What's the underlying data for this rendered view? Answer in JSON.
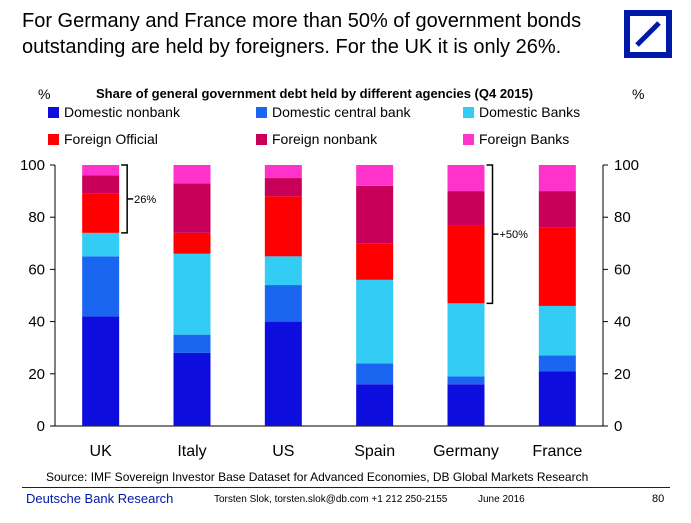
{
  "headline": "For Germany and France more than 50% of government bonds outstanding are held by foreigners. For the UK it is only 26%.",
  "logo": {
    "name": "deutsche-bank-logo",
    "color": "#0018a8"
  },
  "chart_data": {
    "type": "bar",
    "stacked": true,
    "title": "Share of general government debt held by different agencies (Q4 2015)",
    "ylabel_left": "%",
    "ylabel_right": "%",
    "ylim": [
      0,
      100
    ],
    "yticks": [
      0,
      20,
      40,
      60,
      80,
      100
    ],
    "grid": false,
    "legend_placement": "top",
    "categories": [
      "UK",
      "Italy",
      "US",
      "Spain",
      "Germany",
      "France"
    ],
    "series": [
      {
        "name": "Domestic nonbank",
        "color": "#0d0dde",
        "values": [
          42,
          28,
          40,
          16,
          16,
          21
        ]
      },
      {
        "name": "Domestic central bank",
        "color": "#1a66f0",
        "values": [
          23,
          7,
          14,
          8,
          3,
          6
        ]
      },
      {
        "name": "Domestic Banks",
        "color": "#33ccf5",
        "values": [
          9,
          31,
          11,
          32,
          28,
          19
        ]
      },
      {
        "name": "Foreign Official",
        "color": "#ff0000",
        "values": [
          15,
          8,
          23,
          14,
          30,
          30
        ]
      },
      {
        "name": "Foreign nonbank",
        "color": "#c8005a",
        "values": [
          7,
          19,
          7,
          22,
          13,
          14
        ]
      },
      {
        "name": "Foreign Banks",
        "color": "#ff33cc",
        "values": [
          4,
          7,
          5,
          8,
          10,
          10
        ]
      }
    ],
    "annotations": [
      {
        "text": "26%",
        "category": "UK",
        "from": 74,
        "to": 100
      },
      {
        "text": "+50%",
        "category": "Germany",
        "from": 47,
        "to": 100
      }
    ]
  },
  "source": "Source: IMF Sovereign Investor Base Dataset for Advanced Economies, DB Global Markets Research",
  "footer": {
    "brand": "Deutsche Bank Research",
    "contact": "Torsten Slok, torsten.slok@db.com  +1 212 250-2155",
    "date": "June 2016",
    "page": "80"
  }
}
